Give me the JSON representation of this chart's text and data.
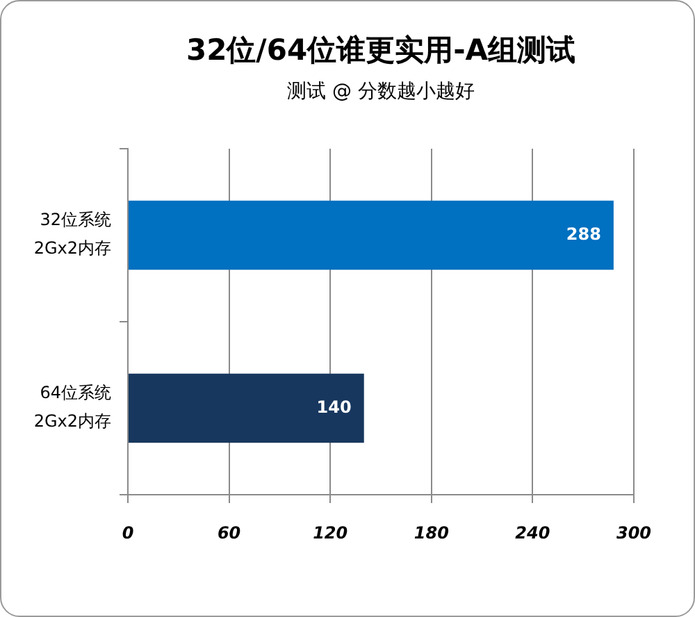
{
  "chart_data": {
    "type": "bar",
    "orientation": "horizontal",
    "title": "32位/64位谁更实用-A组测试",
    "subtitle": "测试 @ 分数越小越好",
    "categories": [
      "32位系统\n2Gx2内存",
      "64位系统\n2Gx2内存"
    ],
    "values": [
      288,
      140
    ],
    "colors": [
      "#0070c0",
      "#17375e"
    ],
    "xlim": [
      0,
      300
    ],
    "xticks": [
      0,
      60,
      120,
      180,
      240,
      300
    ],
    "grid": "x",
    "data_labels": true
  }
}
